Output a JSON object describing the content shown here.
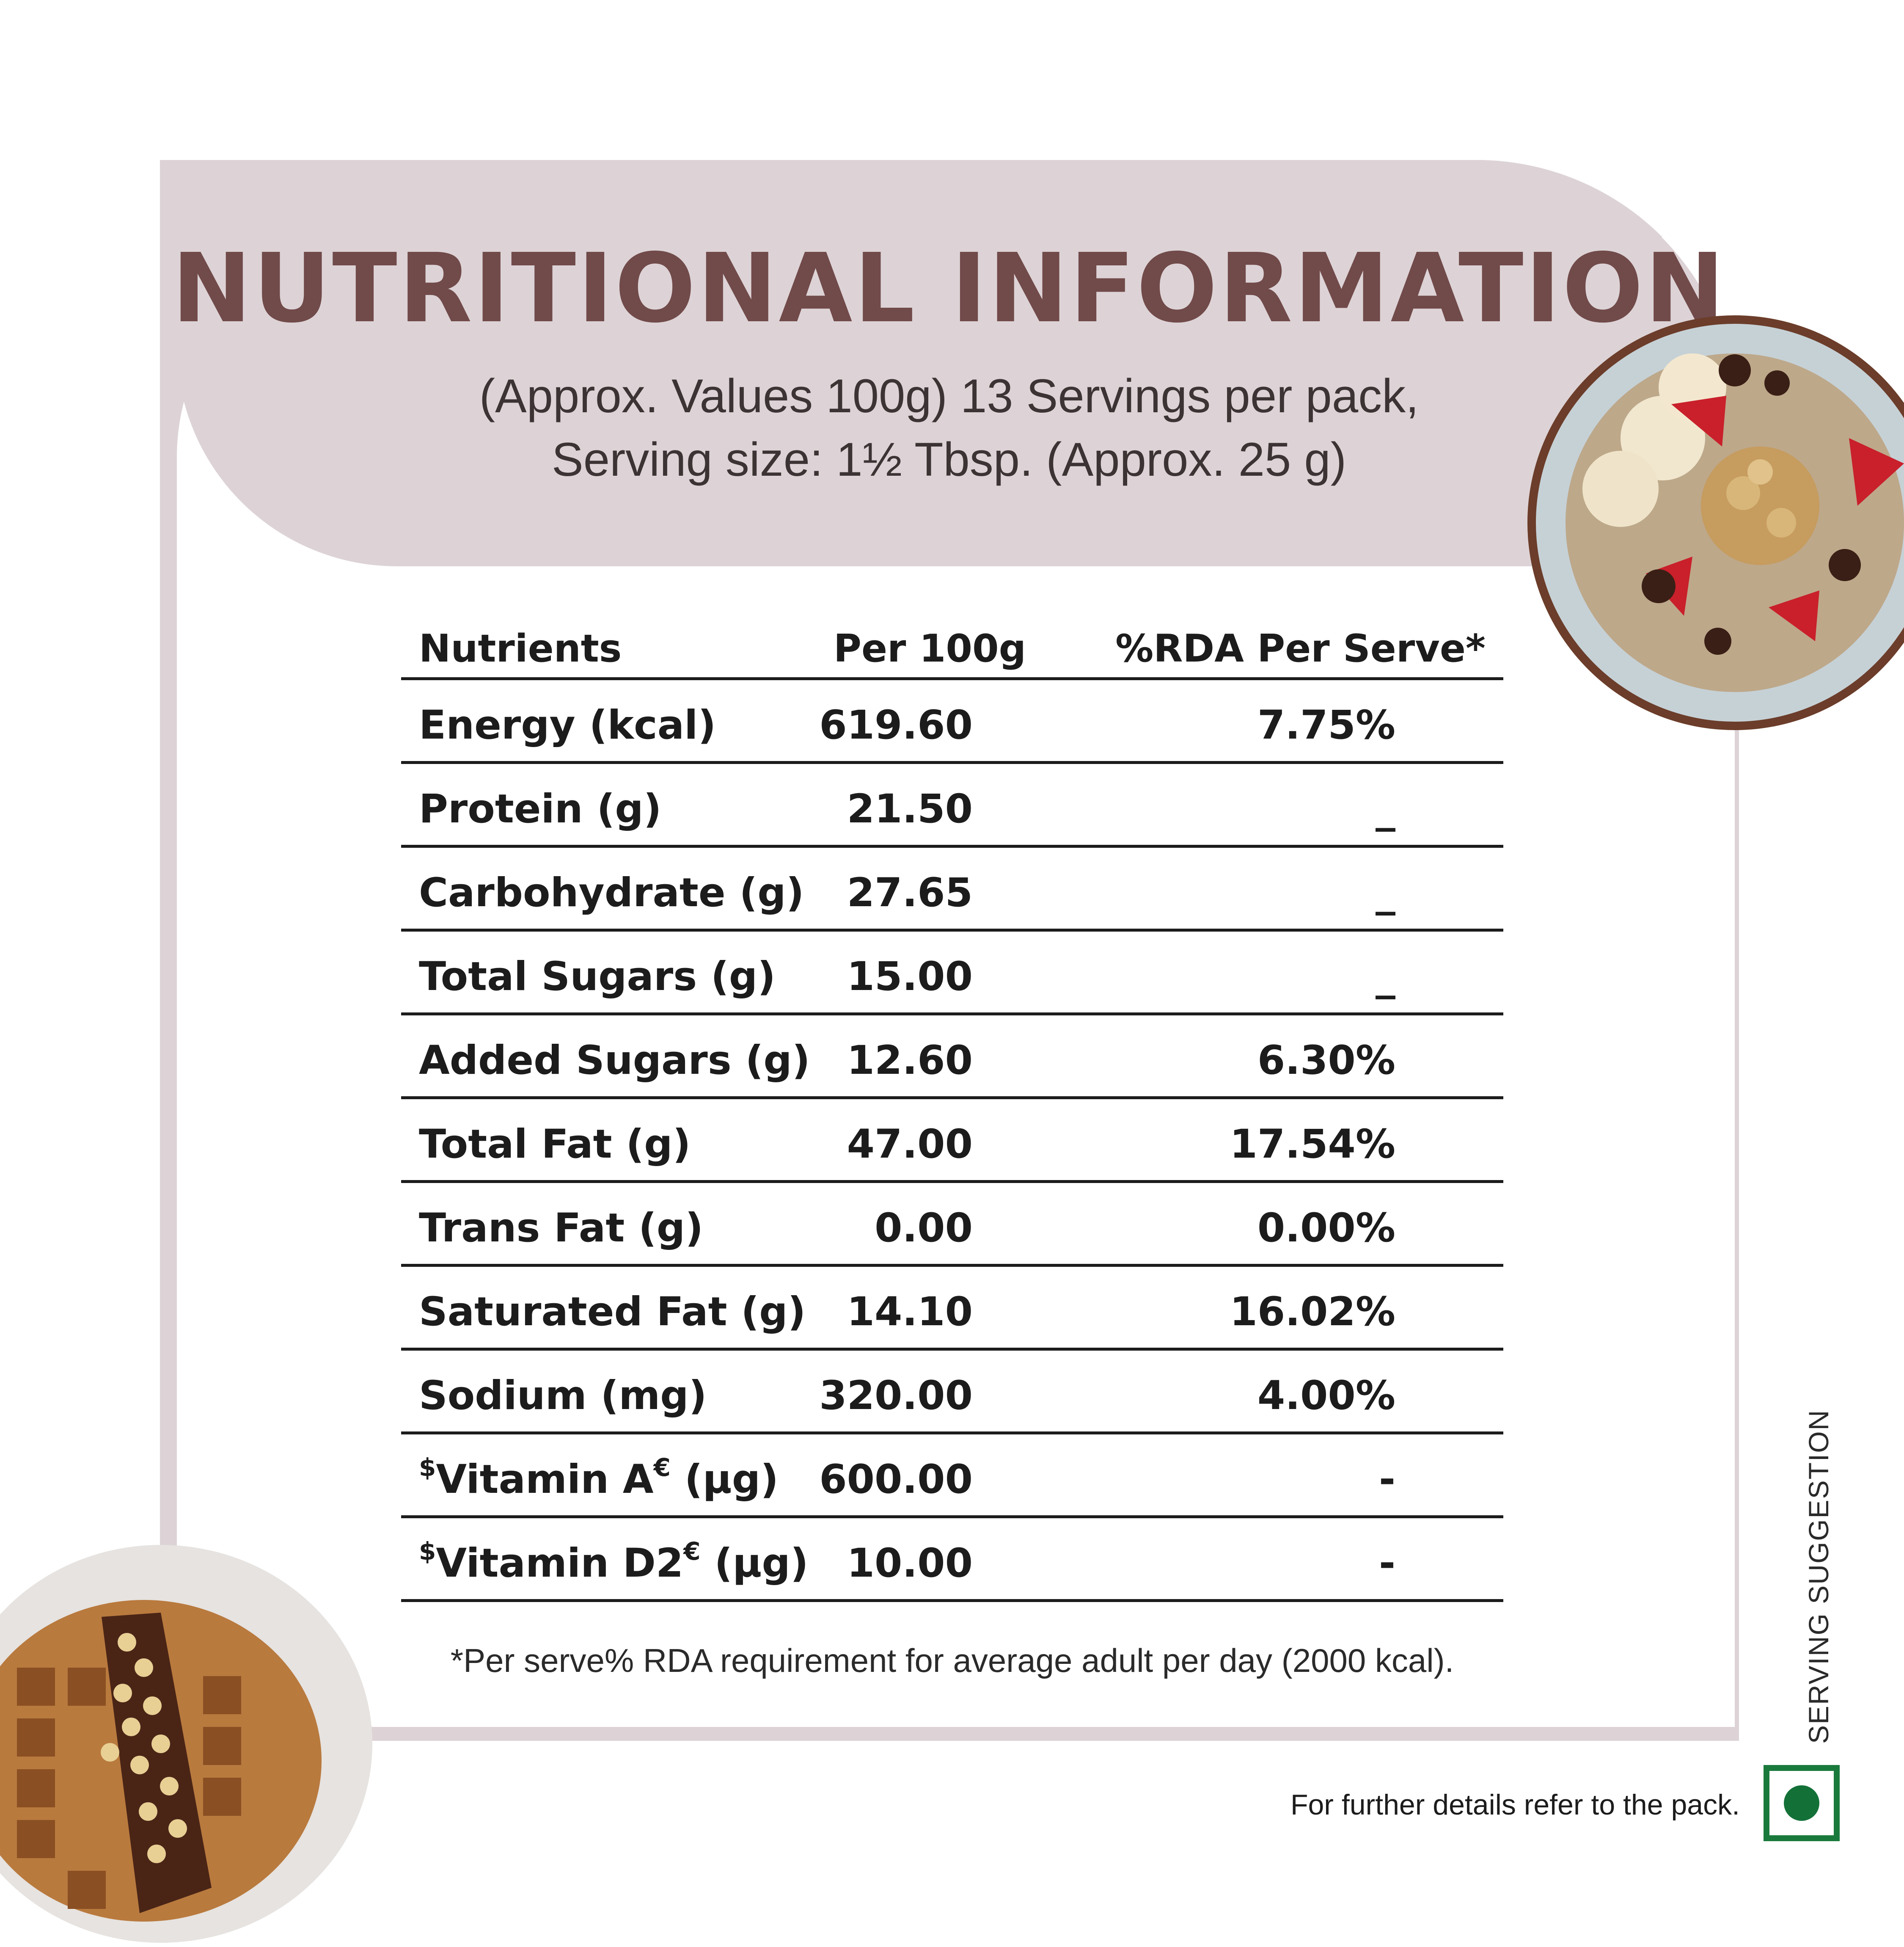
{
  "header": {
    "title": "NUTRITIONAL INFORMATION",
    "subtitle_line1": "(Approx. Values 100g) 13 Servings per pack,",
    "subtitle_line2": "Serving size: 1½ Tbsp. (Approx. 25 g)"
  },
  "table": {
    "columns": [
      "Nutrients",
      "Per 100g",
      "%RDA Per Serve*"
    ],
    "rows": [
      {
        "nutrient": "Energy (kcal)",
        "per_100g": "619.60",
        "rda": "7.75%"
      },
      {
        "nutrient": "Protein (g)",
        "per_100g": "21.50",
        "rda": "_"
      },
      {
        "nutrient": "Carbohydrate (g)",
        "per_100g": "27.65",
        "rda": "_"
      },
      {
        "nutrient": "Total Sugars (g)",
        "per_100g": "15.00",
        "rda": "_"
      },
      {
        "nutrient": "Added Sugars (g)",
        "per_100g": "12.60",
        "rda": "6.30%"
      },
      {
        "nutrient": "Total Fat (g)",
        "per_100g": "47.00",
        "rda": "17.54%"
      },
      {
        "nutrient": "Trans Fat (g)",
        "per_100g": "0.00",
        "rda": "0.00%"
      },
      {
        "nutrient": "Saturated Fat (g)",
        "per_100g": "14.10",
        "rda": "16.02%"
      },
      {
        "nutrient": "Sodium (mg)",
        "per_100g": "320.00",
        "rda": "4.00%"
      },
      {
        "nutrient_prefix": "$",
        "nutrient": "Vitamin A",
        "nutrient_mark": "€",
        "nutrient_suffix": " (µg)",
        "per_100g": "600.00",
        "rda": "-"
      },
      {
        "nutrient_prefix": "$",
        "nutrient": "Vitamin D2",
        "nutrient_mark": "€",
        "nutrient_suffix": " (µg)",
        "per_100g": "10.00",
        "rda": "-"
      }
    ]
  },
  "footnote": "*Per serve% RDA requirement for average adult per day (2000 kcal).",
  "serving_suggestion": "SERVING SUGGESTION",
  "further_details": "For further details refer to the pack.",
  "colors": {
    "title": "#714a4a",
    "band": "#ddd3d6",
    "veg_mark": "#1a7a3c"
  },
  "icons": [
    "veg-mark-icon"
  ]
}
